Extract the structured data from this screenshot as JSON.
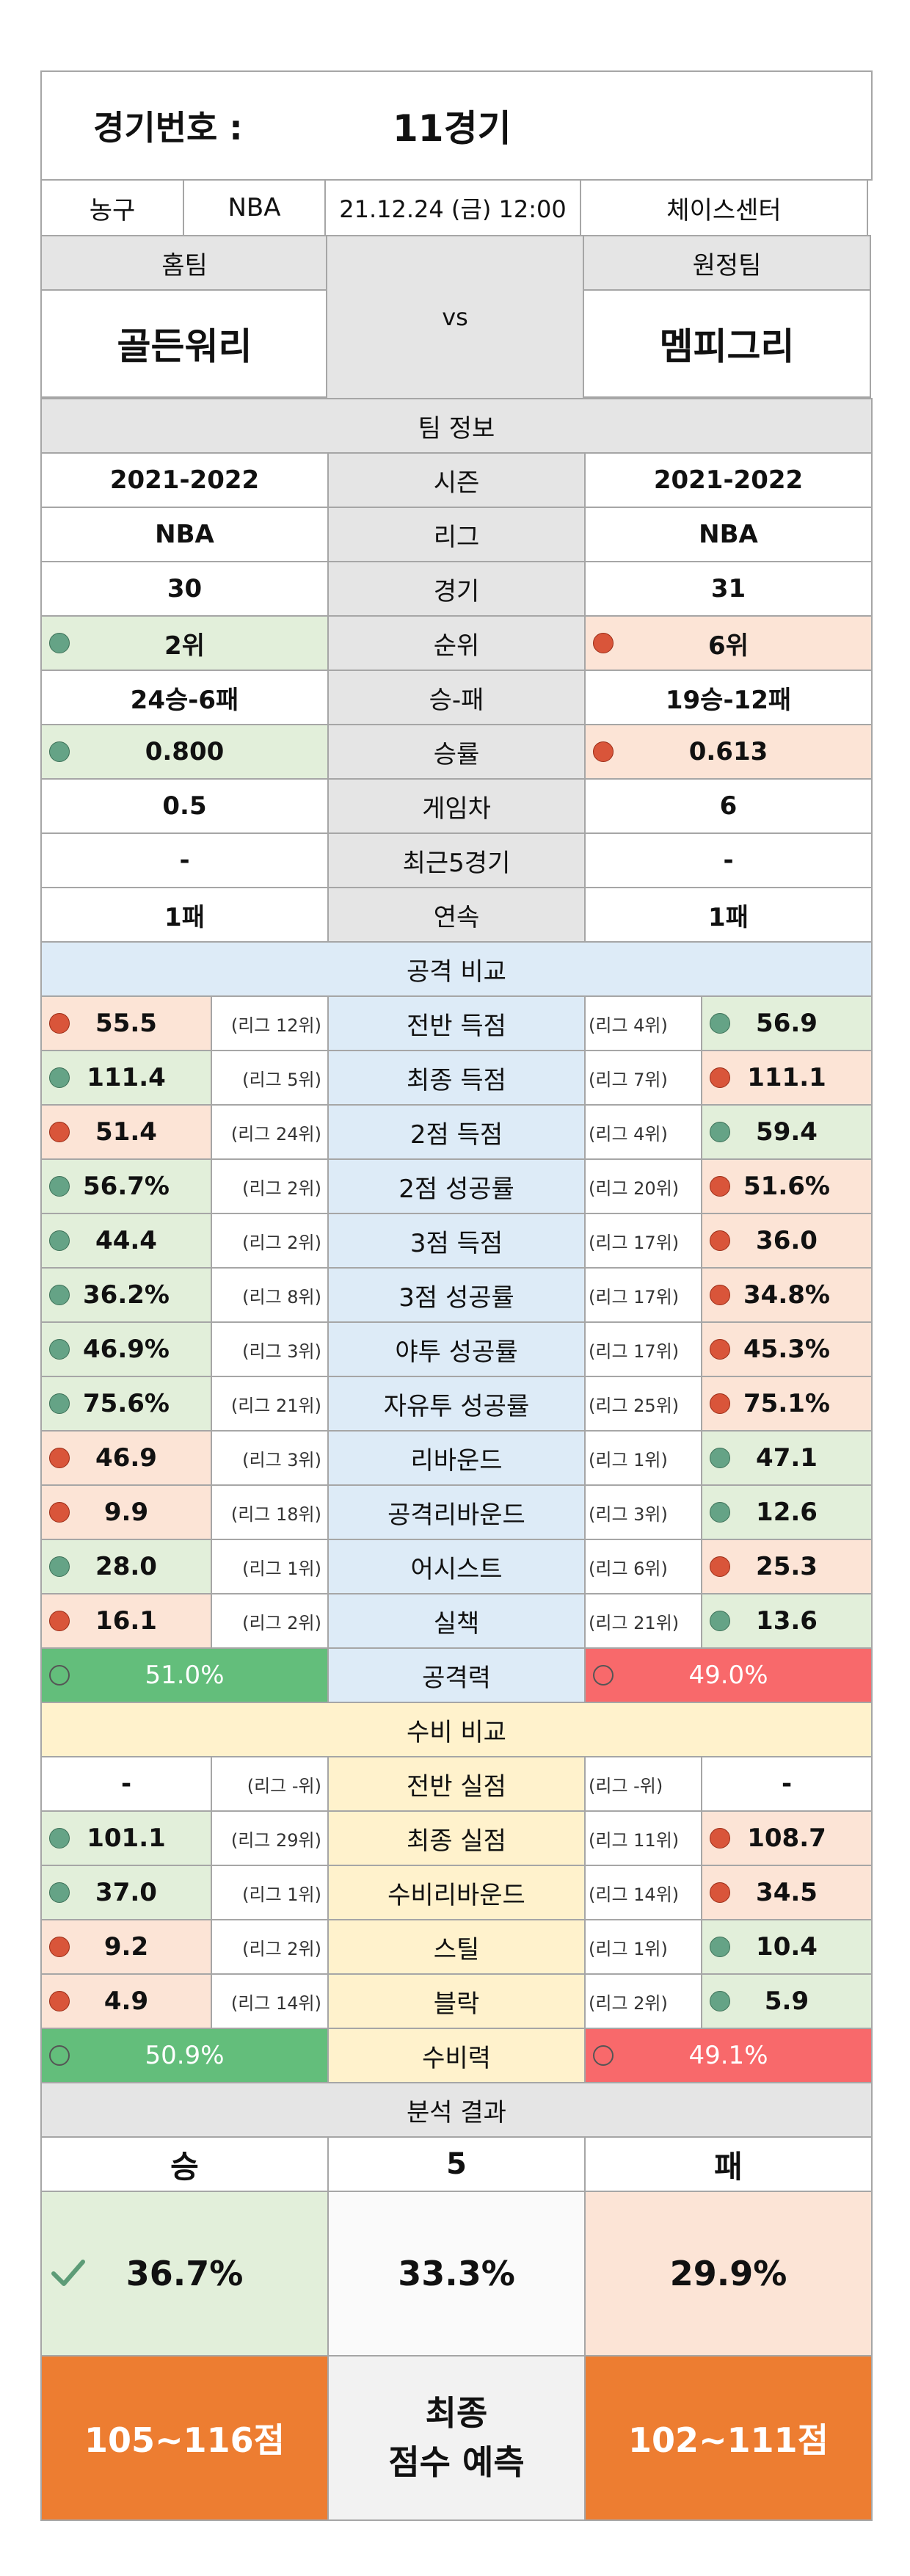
{
  "header": {
    "label": "경기번호 :",
    "game": "11경기"
  },
  "info": {
    "sport": "농구",
    "league": "NBA",
    "datetime": "21.12.24 (금) 12:00",
    "venue": "체이스센터"
  },
  "teams": {
    "home_label": "홈팀",
    "away_label": "원정팀",
    "home": "골든워리",
    "vs": "vs",
    "away": "멤피그리"
  },
  "team_info": {
    "title": "팀 정보",
    "rows": [
      {
        "label": "시즌",
        "home": "2021-2022",
        "away": "2021-2022"
      },
      {
        "label": "리그",
        "home": "NBA",
        "away": "NBA"
      },
      {
        "label": "경기",
        "home": "30",
        "away": "31"
      },
      {
        "label": "순위",
        "home": "2위",
        "away": "6위"
      },
      {
        "label": "승-패",
        "home": "24승-6패",
        "away": "19승-12패"
      },
      {
        "label": "승률",
        "home": "0.800",
        "away": "0.613"
      },
      {
        "label": "게임차",
        "home": "0.5",
        "away": "6"
      },
      {
        "label": "최근5경기",
        "home": "-",
        "away": "-"
      },
      {
        "label": "연속",
        "home": "1패",
        "away": "1패"
      }
    ]
  },
  "attack": {
    "title": "공격 비교",
    "rows": [
      {
        "label": "전반 득점",
        "home": "55.5",
        "home_rank": "(리그 12위)",
        "away": "56.9",
        "away_rank": "(리그 4위)",
        "home_good": false
      },
      {
        "label": "최종 득점",
        "home": "111.4",
        "home_rank": "(리그 5위)",
        "away": "111.1",
        "away_rank": "(리그 7위)",
        "home_good": true
      },
      {
        "label": "2점 득점",
        "home": "51.4",
        "home_rank": "(리그 24위)",
        "away": "59.4",
        "away_rank": "(리그 4위)",
        "home_good": false
      },
      {
        "label": "2점 성공률",
        "home": "56.7%",
        "home_rank": "(리그 2위)",
        "away": "51.6%",
        "away_rank": "(리그 20위)",
        "home_good": true
      },
      {
        "label": "3점 득점",
        "home": "44.4",
        "home_rank": "(리그 2위)",
        "away": "36.0",
        "away_rank": "(리그 17위)",
        "home_good": true
      },
      {
        "label": "3점 성공률",
        "home": "36.2%",
        "home_rank": "(리그 8위)",
        "away": "34.8%",
        "away_rank": "(리그 17위)",
        "home_good": true
      },
      {
        "label": "야투 성공률",
        "home": "46.9%",
        "home_rank": "(리그 3위)",
        "away": "45.3%",
        "away_rank": "(리그 17위)",
        "home_good": true
      },
      {
        "label": "자유투 성공률",
        "home": "75.6%",
        "home_rank": "(리그 21위)",
        "away": "75.1%",
        "away_rank": "(리그 25위)",
        "home_good": true
      },
      {
        "label": "리바운드",
        "home": "46.9",
        "home_rank": "(리그 3위)",
        "away": "47.1",
        "away_rank": "(리그 1위)",
        "home_good": false
      },
      {
        "label": "공격리바운드",
        "home": "9.9",
        "home_rank": "(리그 18위)",
        "away": "12.6",
        "away_rank": "(리그 3위)",
        "home_good": false
      },
      {
        "label": "어시스트",
        "home": "28.0",
        "home_rank": "(리그 1위)",
        "away": "25.3",
        "away_rank": "(리그 6위)",
        "home_good": true
      },
      {
        "label": "실책",
        "home": "16.1",
        "home_rank": "(리그 2위)",
        "away": "13.6",
        "away_rank": "(리그 21위)",
        "home_good": false
      }
    ],
    "power_label": "공격력",
    "home_power": "51.0%",
    "away_power": "49.0%"
  },
  "defense": {
    "title": "수비 비교",
    "rows": [
      {
        "label": "전반 실점",
        "home": "-",
        "home_rank": "(리그 -위)",
        "away": "-",
        "away_rank": "(리그 -위)",
        "home_good": null
      },
      {
        "label": "최종 실점",
        "home": "101.1",
        "home_rank": "(리그 29위)",
        "away": "108.7",
        "away_rank": "(리그 11위)",
        "home_good": true
      },
      {
        "label": "수비리바운드",
        "home": "37.0",
        "home_rank": "(리그 1위)",
        "away": "34.5",
        "away_rank": "(리그 14위)",
        "home_good": true
      },
      {
        "label": "스틸",
        "home": "9.2",
        "home_rank": "(리그 2위)",
        "away": "10.4",
        "away_rank": "(리그 1위)",
        "home_good": false
      },
      {
        "label": "블락",
        "home": "4.9",
        "home_rank": "(리그 14위)",
        "away": "5.9",
        "away_rank": "(리그 2위)",
        "home_good": false
      }
    ],
    "power_label": "수비력",
    "home_power": "50.9%",
    "away_power": "49.1%"
  },
  "analysis": {
    "title": "분석 결과",
    "win": "승",
    "draw": "5",
    "lose": "패",
    "win_pct": "36.7%",
    "draw_pct": "33.3%",
    "lose_pct": "29.9%",
    "check_icon": "check-icon",
    "home_score": "105~116점",
    "predict_line1": "최종",
    "predict_line2": "점수 예측",
    "away_score": "102~111점"
  },
  "colors": {
    "good": "#e2efda",
    "bad": "#fce4d6",
    "attack": "#ddebf7",
    "defense": "#fff2cc",
    "orange": "#ed7d31",
    "green_bar": "#63be7b",
    "red_bar": "#f8696b"
  }
}
